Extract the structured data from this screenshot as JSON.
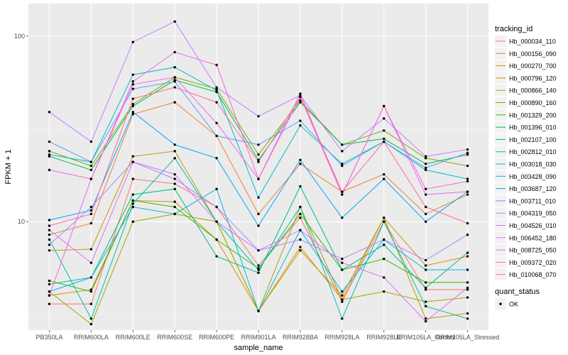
{
  "chart_data": {
    "type": "line",
    "xlabel": "sample_name",
    "ylabel": "FPKM + 1",
    "y_scale": "log10",
    "ylim": [
      2.6,
      150
    ],
    "y_ticks": [
      10,
      100
    ],
    "y_tick_labels": [
      "10",
      "100"
    ],
    "grid": true,
    "legend_position": "right",
    "categories": [
      "PB350LA",
      "RRIM600LA",
      "RRIM600LE",
      "RRIM600SE",
      "RRIM600PE",
      "RRIM901LA",
      "RRIM928BA",
      "RRIM928LA",
      "RRIM928LE",
      "RRIM105LA_Control",
      "RRIM105LA_Stressed"
    ],
    "legend_title": "tracking_id",
    "series": [
      {
        "name": "Hb_000034_110",
        "color": "#F8766D",
        "values": [
          3.6,
          3.6,
          17.0,
          16.0,
          12.0,
          5.8,
          10.5,
          3.7,
          10.0,
          4.3,
          4.3
        ]
      },
      {
        "name": "Hb_000156_090",
        "color": "#EB8335",
        "values": [
          8.5,
          9.8,
          38.0,
          44.0,
          29.0,
          11.0,
          20.5,
          14.5,
          18.0,
          11.0,
          14.0
        ]
      },
      {
        "name": "Hb_000270_700",
        "color": "#D89000",
        "values": [
          4.0,
          4.3,
          13.0,
          12.8,
          8.0,
          3.3,
          7.3,
          3.8,
          10.5,
          5.8,
          6.5
        ]
      },
      {
        "name": "Hb_000796_120",
        "color": "#C09B00",
        "values": [
          7.0,
          7.1,
          22.5,
          24.0,
          10.0,
          3.3,
          7.0,
          4.0,
          10.5,
          3.0,
          3.2
        ]
      },
      {
        "name": "Hb_000866_140",
        "color": "#A3A500",
        "values": [
          4.2,
          2.8,
          10.0,
          11.0,
          10.0,
          3.3,
          12.0,
          3.8,
          4.2,
          3.7,
          3.9
        ]
      },
      {
        "name": "Hb_000890_160",
        "color": "#7CAE00",
        "values": [
          24.0,
          20.0,
          43.0,
          60.0,
          52.0,
          23.0,
          45.0,
          26.0,
          31.0,
          22.0,
          20.0
        ]
      },
      {
        "name": "Hb_001329_200",
        "color": "#39B600",
        "values": [
          4.8,
          4.2,
          13.0,
          12.0,
          8.0,
          5.6,
          11.0,
          5.5,
          6.3,
          4.7,
          4.7
        ]
      },
      {
        "name": "Hb_001396_010",
        "color": "#00BB4E",
        "values": [
          22.5,
          19.0,
          42.0,
          58.0,
          50.0,
          21.5,
          44.0,
          26.0,
          28.0,
          20.5,
          23.0
        ]
      },
      {
        "name": "Hb_002107_100",
        "color": "#00BF7D",
        "values": [
          4.6,
          5.0,
          14.0,
          15.0,
          6.5,
          5.3,
          15.5,
          5.5,
          7.5,
          4.4,
          6.8
        ]
      },
      {
        "name": "Hb_002812_010",
        "color": "#00C1A3",
        "values": [
          8.0,
          3.0,
          12.5,
          22.0,
          10.0,
          5.5,
          12.0,
          3.0,
          10.0,
          3.5,
          3.0
        ]
      },
      {
        "name": "Hb_003018_030",
        "color": "#00BFC4",
        "values": [
          23.0,
          21.0,
          62.0,
          68.0,
          51.0,
          13.5,
          33.0,
          20.5,
          27.0,
          19.0,
          17.0
        ]
      },
      {
        "name": "Hb_003428_090",
        "color": "#00B8E7",
        "values": [
          4.2,
          5.0,
          12.0,
          11.0,
          15.0,
          3.3,
          9.0,
          4.2,
          8.0,
          5.5,
          5.5
        ]
      },
      {
        "name": "Hb_003687_120",
        "color": "#00A9FF",
        "values": [
          10.2,
          11.5,
          39.0,
          26.0,
          22.0,
          9.5,
          21.5,
          10.5,
          17.0,
          10.0,
          14.5
        ]
      },
      {
        "name": "Hb_003711_010",
        "color": "#619CFF",
        "values": [
          27.0,
          21.0,
          52.0,
          57.0,
          29.0,
          26.0,
          35.0,
          20.0,
          27.0,
          19.5,
          23.5
        ]
      },
      {
        "name": "Hb_004319_050",
        "color": "#AE87FF",
        "values": [
          7.5,
          12.0,
          21.0,
          17.0,
          12.0,
          7.0,
          8.0,
          6.3,
          8.0,
          6.2,
          8.5
        ]
      },
      {
        "name": "Hb_004526_010",
        "color": "#C77CFF",
        "values": [
          39.0,
          27.0,
          93.0,
          120.0,
          53.0,
          37.0,
          48.0,
          24.0,
          36.0,
          22.5,
          24.5
        ]
      },
      {
        "name": "Hb_006452_180",
        "color": "#DB72FB",
        "values": [
          9.0,
          6.0,
          21.0,
          18.0,
          10.0,
          7.0,
          9.0,
          6.0,
          5.0,
          2.9,
          4.4
        ]
      },
      {
        "name": "Hb_008725_050",
        "color": "#ED68ED",
        "values": [
          4.0,
          17.0,
          55.0,
          60.0,
          34.0,
          17.0,
          47.0,
          14.0,
          42.0,
          14.0,
          14.5
        ]
      },
      {
        "name": "Hb_009372_020",
        "color": "#F863DF",
        "values": [
          19.0,
          17.0,
          57.0,
          82.0,
          70.0,
          17.0,
          49.0,
          14.0,
          42.0,
          15.0,
          16.5
        ]
      },
      {
        "name": "Hb_010068_070",
        "color": "#FF6C91",
        "values": [
          9.5,
          11.0,
          46.0,
          53.0,
          44.0,
          21.0,
          47.0,
          14.5,
          27.0,
          12.0,
          9.8
        ]
      }
    ],
    "shape_legend_title": "quant_status",
    "shape_legend_items": [
      "OK"
    ]
  }
}
